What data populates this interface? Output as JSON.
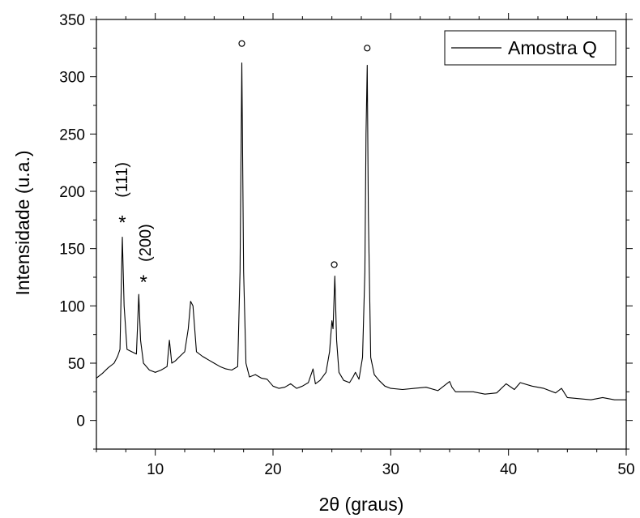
{
  "chart_data": {
    "type": "line",
    "xlabel": "2θ (graus)",
    "ylabel": "Intensidade (u.a.)",
    "xlim": [
      5,
      50
    ],
    "ylim": [
      -25,
      350
    ],
    "grid": false,
    "legend_position": "top-right",
    "x_ticks": [
      10,
      20,
      30,
      40,
      50
    ],
    "y_ticks": [
      0,
      50,
      100,
      150,
      200,
      250,
      300,
      350
    ],
    "x_tick_labels": [
      "10",
      "20",
      "30",
      "40",
      "50"
    ],
    "y_tick_labels": [
      "0",
      "50",
      "100",
      "150",
      "200",
      "250",
      "300",
      "350"
    ],
    "series": [
      {
        "name": "Amostra Q",
        "color": "#000000",
        "x": [
          5.0,
          5.5,
          6.0,
          6.5,
          6.8,
          7.0,
          7.1,
          7.2,
          7.35,
          7.6,
          8.0,
          8.4,
          8.6,
          8.75,
          9.0,
          9.5,
          10.0,
          10.5,
          11.0,
          11.2,
          11.4,
          11.7,
          12.0,
          12.5,
          12.8,
          13.0,
          13.2,
          13.5,
          14.0,
          14.5,
          15.0,
          15.5,
          16.0,
          16.5,
          17.0,
          17.2,
          17.35,
          17.5,
          17.7,
          18.0,
          18.5,
          19.0,
          19.5,
          20.0,
          20.5,
          21.0,
          21.5,
          22.0,
          22.5,
          23.0,
          23.4,
          23.6,
          24.0,
          24.5,
          24.8,
          25.0,
          25.1,
          25.25,
          25.4,
          25.6,
          26.0,
          26.5,
          26.8,
          27.0,
          27.3,
          27.6,
          27.8,
          27.9,
          28.0,
          28.1,
          28.3,
          28.6,
          29.0,
          29.5,
          30.0,
          31.0,
          32.0,
          33.0,
          34.0,
          35.0,
          35.2,
          35.5,
          36.0,
          37.0,
          38.0,
          39.0,
          39.8,
          40.5,
          41.0,
          42.0,
          43.0,
          44.0,
          44.5,
          45.0,
          46.0,
          47.0,
          48.0,
          49.0,
          50.0
        ],
        "values": [
          37,
          41,
          46,
          50,
          56,
          62,
          110,
          160,
          100,
          62,
          60,
          58,
          110,
          70,
          50,
          44,
          42,
          44,
          47,
          70,
          50,
          52,
          55,
          60,
          80,
          104,
          100,
          60,
          56,
          53,
          50,
          47,
          45,
          44,
          47,
          130,
          312,
          130,
          50,
          38,
          40,
          37,
          36,
          30,
          28,
          29,
          32,
          28,
          30,
          33,
          45,
          32,
          35,
          42,
          60,
          87,
          80,
          126,
          70,
          42,
          35,
          33,
          38,
          42,
          36,
          55,
          130,
          250,
          310,
          180,
          55,
          40,
          35,
          30,
          28,
          27,
          28,
          29,
          26,
          34,
          29,
          25,
          25,
          25,
          23,
          24,
          32,
          27,
          33,
          30,
          28,
          24,
          28,
          20,
          19,
          18,
          20,
          18,
          18
        ]
      }
    ],
    "annotations": [
      {
        "text": "*",
        "x": 7.2,
        "y": 174
      },
      {
        "text": "(111)",
        "x": 7.6,
        "y": 210
      },
      {
        "text": "*",
        "x": 9.0,
        "y": 122
      },
      {
        "text": "(200)",
        "x": 9.6,
        "y": 155
      },
      {
        "text": "o",
        "x": 17.35,
        "y": 329
      },
      {
        "text": "o",
        "x": 25.2,
        "y": 136
      },
      {
        "text": "o",
        "x": 28.0,
        "y": 325
      }
    ]
  }
}
